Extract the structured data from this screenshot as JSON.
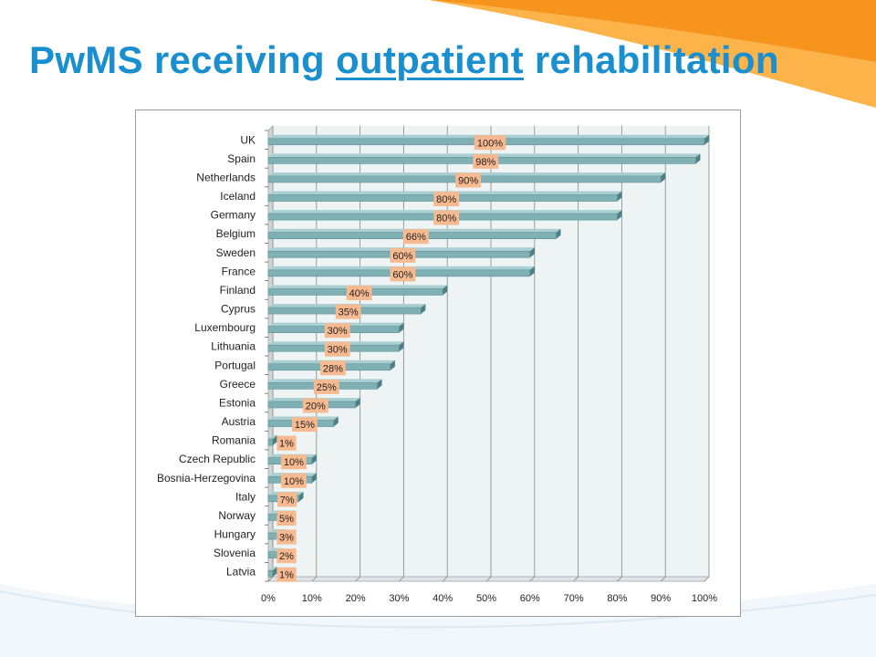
{
  "slide": {
    "title_before": "PwMS receiving ",
    "title_underlined": "outpatient",
    "title_after": " rehabilitation"
  },
  "colors": {
    "title": "#1a8fd0",
    "bar": "#7fb0b4",
    "bar_top": "#a9cfd2",
    "bar_side": "#4e7f84",
    "label_bg": "#f7b98f",
    "plot_bg": "#eef3f4",
    "accent_orange": "#f7941d",
    "accent_yellow": "#fbb34a"
  },
  "chart_data": {
    "type": "bar",
    "orientation": "horizontal",
    "title": "",
    "xlabel": "",
    "ylabel": "",
    "xlim": [
      0,
      100
    ],
    "x_tick_step": 10,
    "x_tick_suffix": "%",
    "grid": true,
    "legend": "none",
    "categories": [
      "UK",
      "Spain",
      "Netherlands",
      "Iceland",
      "Germany",
      "Belgium",
      "Sweden",
      "France",
      "Finland",
      "Cyprus",
      "Luxembourg",
      "Lithuania",
      "Portugal",
      "Greece",
      "Estonia",
      "Austria",
      "Romania",
      "Czech Republic",
      "Bosnia-Herzegovina",
      "Italy",
      "Norway",
      "Hungary",
      "Slovenia",
      "Latvia"
    ],
    "values": [
      100,
      98,
      90,
      80,
      80,
      66,
      60,
      60,
      40,
      35,
      30,
      30,
      28,
      25,
      20,
      15,
      1,
      10,
      10,
      7,
      5,
      3,
      2,
      1
    ],
    "data_labels": [
      "100%",
      "98%",
      "90%",
      "80%",
      "80%",
      "66%",
      "60%",
      "60%",
      "40%",
      "35%",
      "30%",
      "30%",
      "28%",
      "25%",
      "20%",
      "15%",
      "1%",
      "10%",
      "10%",
      "7%",
      "5%",
      "3%",
      "2%",
      "1%"
    ]
  }
}
